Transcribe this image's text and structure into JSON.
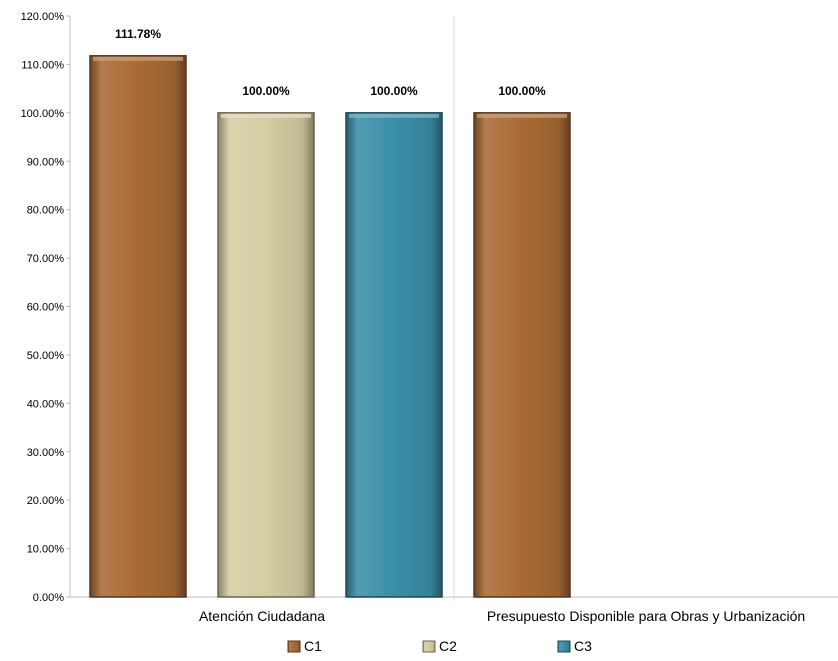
{
  "chart_data": {
    "type": "bar",
    "categories": [
      "Atención Ciudadana",
      "Presupuesto Disponible para Obras y Urbanización"
    ],
    "series": [
      {
        "name": "C1",
        "values": [
          111.78,
          100.0
        ],
        "labels": [
          "111.78%",
          "100.00%"
        ],
        "color": "#A96B35"
      },
      {
        "name": "C2",
        "values": [
          100.0,
          null
        ],
        "labels": [
          "100.00%",
          ""
        ],
        "color": "#D5CDA3"
      },
      {
        "name": "C3",
        "values": [
          100.0,
          null
        ],
        "labels": [
          "100.00%",
          ""
        ],
        "color": "#3A8FA8"
      }
    ],
    "yticks": [
      "0.00%",
      "10.00%",
      "20.00%",
      "30.00%",
      "40.00%",
      "50.00%",
      "60.00%",
      "70.00%",
      "80.00%",
      "90.00%",
      "100.00%",
      "110.00%",
      "120.00%"
    ],
    "ylim": [
      0,
      120
    ],
    "legend_position": "bottom",
    "grid": false
  }
}
